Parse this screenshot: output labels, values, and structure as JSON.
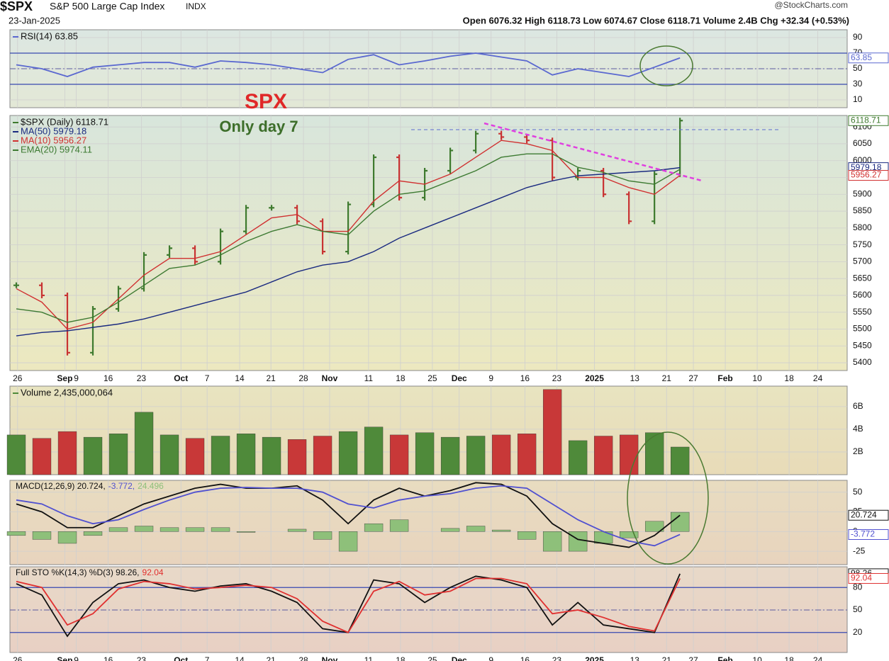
{
  "header": {
    "symbol": "$SPX",
    "name": "S&P 500 Large Cap Index",
    "exchange": "INDX",
    "date": "23-Jan-2025",
    "quote": "Open 6076.32 High 6118.73 Low 6074.67 Close 6118.71 Volume 2.4B Chg +32.34 (+0.53%)",
    "credit": "@StockCharts.com"
  },
  "annotations": {
    "title": "SPX",
    "subtitle": "Only day 7"
  },
  "chart_data": [
    {
      "type": "line",
      "panel": "rsi",
      "xlim": [
        0,
        131.2
      ],
      "ylim": [
        0,
        100
      ],
      "yticks": [
        90,
        70,
        50,
        30,
        10
      ],
      "x": [
        1,
        5,
        9,
        13,
        17,
        21,
        25,
        29,
        33,
        37,
        41,
        45,
        49,
        53,
        57,
        61,
        65,
        69,
        73,
        77,
        81,
        85,
        89,
        93,
        97,
        101,
        105
      ],
      "reference_lines": [
        {
          "value": 70,
          "style": "solid"
        },
        {
          "value": 50,
          "style": "dashdot"
        },
        {
          "value": 30,
          "style": "solid"
        }
      ],
      "series": [
        {
          "name": "RSI(14) 63.85",
          "color": "#5a68d0",
          "kind": "line",
          "tag": true,
          "values": [
            55,
            50,
            40,
            52,
            55,
            58,
            58,
            52,
            60,
            58,
            55,
            50,
            45,
            62,
            68,
            55,
            60,
            66,
            70,
            65,
            60,
            42,
            50,
            45,
            40,
            52,
            63.85
          ]
        }
      ]
    },
    {
      "type": "line",
      "panel": "price",
      "xlim": [
        0,
        131.2
      ],
      "ylim": [
        5377,
        6134
      ],
      "yticks": [
        5400,
        5450,
        5500,
        5550,
        5600,
        5650,
        5700,
        5750,
        5800,
        5850,
        5900,
        5950,
        6000,
        6050,
        6100
      ],
      "xticks": [
        {
          "value": 1.2,
          "label": "26"
        },
        {
          "value": 8.6,
          "label": "Sep"
        },
        {
          "value": 10.4,
          "label": "9"
        },
        {
          "value": 15.4,
          "label": "16"
        },
        {
          "value": 20.6,
          "label": "23"
        },
        {
          "value": 26.8,
          "label": "Oct"
        },
        {
          "value": 30.9,
          "label": "7"
        },
        {
          "value": 36,
          "label": "14"
        },
        {
          "value": 40.9,
          "label": "21"
        },
        {
          "value": 46,
          "label": "28"
        },
        {
          "value": 50.1,
          "label": "Nov"
        },
        {
          "value": 56.2,
          "label": "11"
        },
        {
          "value": 61.2,
          "label": "18"
        },
        {
          "value": 66.2,
          "label": "25"
        },
        {
          "value": 70.4,
          "label": "Dec"
        },
        {
          "value": 75.4,
          "label": "9"
        },
        {
          "value": 80.7,
          "label": "16"
        },
        {
          "value": 85.7,
          "label": "23"
        },
        {
          "value": 91.6,
          "label": "2025"
        },
        {
          "value": 97.9,
          "label": "13"
        },
        {
          "value": 102.9,
          "label": "21"
        },
        {
          "value": 107.1,
          "label": "27"
        },
        {
          "value": 112.1,
          "label": "Feb"
        },
        {
          "value": 117.1,
          "label": "10"
        },
        {
          "value": 122.1,
          "label": "18"
        },
        {
          "value": 126.6,
          "label": "24"
        }
      ],
      "x": [
        1,
        5,
        9,
        13,
        17,
        21,
        25,
        29,
        33,
        37,
        41,
        45,
        49,
        53,
        57,
        61,
        65,
        69,
        73,
        77,
        81,
        85,
        89,
        93,
        97,
        101,
        105
      ],
      "series": [
        {
          "name": "$SPX (Daily) 6118.71",
          "color": "#3e7a2e",
          "down_color": "#c83232",
          "kind": "price-bar",
          "tag": true,
          "values": [
            5630,
            5600,
            5430,
            5560,
            5620,
            5720,
            5740,
            5700,
            5790,
            5860,
            5860,
            5820,
            5730,
            5870,
            6010,
            5890,
            5970,
            6030,
            6080,
            6070,
            6060,
            5950,
            5970,
            5900,
            5820,
            5960,
            6118.71
          ]
        },
        {
          "name": "MA(50) 5979.18",
          "color": "#1a2a80",
          "kind": "line",
          "tag": true,
          "values": [
            5480,
            5490,
            5495,
            5505,
            5515,
            5530,
            5550,
            5570,
            5590,
            5610,
            5640,
            5670,
            5690,
            5700,
            5730,
            5770,
            5800,
            5830,
            5860,
            5890,
            5920,
            5940,
            5955,
            5960,
            5965,
            5970,
            5979.18
          ]
        },
        {
          "name": "MA(10) 5956.27",
          "color": "#d03030",
          "kind": "line",
          "tag": true,
          "values": [
            5620,
            5580,
            5500,
            5520,
            5590,
            5660,
            5710,
            5710,
            5730,
            5780,
            5830,
            5840,
            5790,
            5790,
            5880,
            5940,
            5930,
            5960,
            6010,
            6060,
            6050,
            6030,
            5950,
            5950,
            5920,
            5900,
            5956.27
          ]
        },
        {
          "name": "EMA(20) 5974.11",
          "color": "#3d7a32",
          "kind": "line",
          "values": [
            5560,
            5550,
            5520,
            5535,
            5580,
            5630,
            5680,
            5690,
            5720,
            5760,
            5790,
            5810,
            5790,
            5780,
            5850,
            5900,
            5910,
            5940,
            5970,
            6010,
            6020,
            6020,
            5980,
            5965,
            5940,
            5930,
            5974.11
          ]
        }
      ]
    },
    {
      "type": "bar",
      "panel": "volume",
      "xlim": [
        0,
        131.2
      ],
      "ylim": [
        0,
        7.8
      ],
      "yticks": [
        {
          "value": 2,
          "label": "2B"
        },
        {
          "value": 4,
          "label": "4B"
        },
        {
          "value": 6,
          "label": "6B"
        }
      ],
      "x": [
        1,
        5,
        9,
        13,
        17,
        21,
        25,
        29,
        33,
        37,
        41,
        45,
        49,
        53,
        57,
        61,
        65,
        69,
        73,
        77,
        81,
        85,
        89,
        93,
        97,
        101,
        105
      ],
      "series": [
        {
          "name": "Volume 2,435,000,064",
          "color": "#4f8a3a",
          "down_color": "#c83838",
          "kind": "bar",
          "values": [
            3.5,
            3.2,
            3.8,
            3.3,
            3.6,
            5.5,
            3.5,
            3.2,
            3.4,
            3.6,
            3.3,
            3.1,
            3.4,
            3.8,
            4.2,
            3.5,
            3.7,
            3.3,
            3.4,
            3.5,
            3.6,
            7.5,
            3.0,
            3.4,
            3.5,
            3.7,
            2.435
          ]
        }
      ]
    },
    {
      "type": "line",
      "panel": "macd",
      "xlim": [
        0,
        131.2
      ],
      "ylim": [
        -42,
        65
      ],
      "yticks": [
        50,
        25,
        0,
        -25
      ],
      "legend_inline": true,
      "x": [
        1,
        5,
        9,
        13,
        17,
        21,
        25,
        29,
        33,
        37,
        41,
        45,
        49,
        53,
        57,
        61,
        65,
        69,
        73,
        77,
        81,
        85,
        89,
        93,
        97,
        101,
        105
      ],
      "series": [
        {
          "name": "24.496",
          "color": "#8ec07a",
          "kind": "bar",
          "values": [
            -5,
            -10,
            -15,
            -5,
            5,
            7,
            5,
            5,
            5,
            -1,
            0,
            3,
            -10,
            -25,
            10,
            15,
            0,
            4,
            7,
            2,
            -10,
            -25,
            -25,
            -15,
            -8,
            13,
            24.496
          ]
        },
        {
          "name": "MACD(12,26,9) 20.724,",
          "color": "#111111",
          "kind": "line",
          "tag": true,
          "values": [
            35,
            25,
            5,
            5,
            20,
            35,
            45,
            55,
            60,
            55,
            55,
            58,
            40,
            10,
            40,
            55,
            45,
            52,
            62,
            60,
            45,
            10,
            -10,
            -15,
            -20,
            -5,
            20.724
          ]
        },
        {
          "name": "-3.772,",
          "color": "#5050d0",
          "kind": "line",
          "tag": true,
          "values": [
            40,
            35,
            20,
            10,
            15,
            28,
            40,
            50,
            55,
            56,
            55,
            55,
            50,
            35,
            30,
            40,
            45,
            48,
            55,
            58,
            55,
            35,
            15,
            0,
            -12,
            -18,
            -3.772
          ]
        }
      ]
    },
    {
      "type": "line",
      "panel": "sto",
      "xlim": [
        0,
        131.2
      ],
      "ylim": [
        -6.7,
        107.6
      ],
      "yticks": [
        80,
        50,
        20
      ],
      "legend_inline": true,
      "xticks": [
        {
          "value": 1.2,
          "label": "26"
        },
        {
          "value": 8.6,
          "label": "Sep"
        },
        {
          "value": 10.4,
          "label": "9"
        },
        {
          "value": 15.4,
          "label": "16"
        },
        {
          "value": 20.6,
          "label": "23"
        },
        {
          "value": 26.8,
          "label": "Oct"
        },
        {
          "value": 30.9,
          "label": "7"
        },
        {
          "value": 36,
          "label": "14"
        },
        {
          "value": 40.9,
          "label": "21"
        },
        {
          "value": 46,
          "label": "28"
        },
        {
          "value": 50.1,
          "label": "Nov"
        },
        {
          "value": 56.2,
          "label": "11"
        },
        {
          "value": 61.2,
          "label": "18"
        },
        {
          "value": 66.2,
          "label": "25"
        },
        {
          "value": 70.4,
          "label": "Dec"
        },
        {
          "value": 75.4,
          "label": "9"
        },
        {
          "value": 80.7,
          "label": "16"
        },
        {
          "value": 85.7,
          "label": "23"
        },
        {
          "value": 91.6,
          "label": "2025"
        },
        {
          "value": 97.9,
          "label": "13"
        },
        {
          "value": 102.9,
          "label": "21"
        },
        {
          "value": 107.1,
          "label": "27"
        },
        {
          "value": 112.1,
          "label": "Feb"
        },
        {
          "value": 117.1,
          "label": "10"
        },
        {
          "value": 122.1,
          "label": "18"
        },
        {
          "value": 126.6,
          "label": "24"
        }
      ],
      "reference_lines": [
        {
          "value": 80,
          "style": "solid"
        },
        {
          "value": 50,
          "style": "dashdot"
        },
        {
          "value": 20,
          "style": "solid"
        }
      ],
      "x": [
        1,
        5,
        9,
        13,
        17,
        21,
        25,
        29,
        33,
        37,
        41,
        45,
        49,
        53,
        57,
        61,
        65,
        69,
        73,
        77,
        81,
        85,
        89,
        93,
        97,
        101,
        105
      ],
      "series": [
        {
          "name": "Full STO %K(14,3) %D(3) 98.26,",
          "color": "#111111",
          "kind": "line",
          "tag": true,
          "values": [
            85,
            70,
            15,
            60,
            85,
            90,
            80,
            75,
            82,
            85,
            75,
            60,
            25,
            20,
            90,
            85,
            60,
            80,
            95,
            90,
            80,
            30,
            60,
            30,
            25,
            20,
            98.26
          ]
        },
        {
          "name": "92.04",
          "color": "#e03030",
          "kind": "line",
          "tag": true,
          "values": [
            88,
            80,
            30,
            45,
            78,
            88,
            85,
            78,
            80,
            83,
            80,
            65,
            35,
            20,
            75,
            88,
            70,
            75,
            92,
            92,
            85,
            45,
            50,
            40,
            28,
            22,
            92.04
          ]
        }
      ]
    }
  ]
}
